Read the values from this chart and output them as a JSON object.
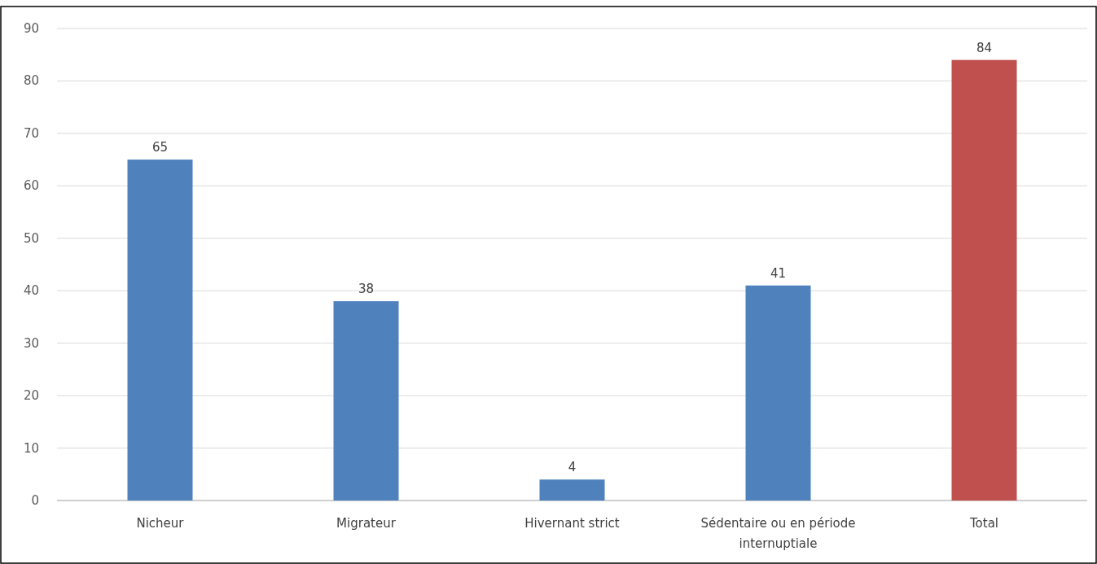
{
  "chart_data": {
    "type": "bar",
    "categories": [
      "Nicheur",
      "Migrateur",
      "Hivernant strict",
      "Sédentaire ou en période internuptiale",
      "Total"
    ],
    "values": [
      65,
      38,
      4,
      41,
      84
    ],
    "colors": [
      "#4f81bd",
      "#4f81bd",
      "#4f81bd",
      "#4f81bd",
      "#c0504d"
    ],
    "ylim": [
      0,
      90
    ],
    "yticks": [
      0,
      10,
      20,
      30,
      40,
      50,
      60,
      70,
      80,
      90
    ],
    "grid": "y",
    "data_labels": true
  }
}
